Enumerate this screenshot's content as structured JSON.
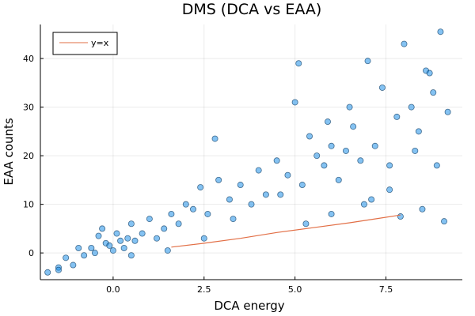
{
  "chart_data": {
    "type": "scatter",
    "title": "DMS (DCA vs EAA)",
    "xlabel": "DCA energy",
    "ylabel": "EAA counts",
    "xlim": [
      -2.0,
      9.6
    ],
    "ylim": [
      -5.5,
      47.0
    ],
    "xticks": [
      0.0,
      2.5,
      5.0,
      7.5
    ],
    "xtick_labels": [
      "0.0",
      "2.5",
      "5.0",
      "7.5"
    ],
    "yticks": [
      0,
      10,
      20,
      30,
      40
    ],
    "ytick_labels": [
      "0",
      "10",
      "20",
      "30",
      "40"
    ],
    "grid": true,
    "legend": {
      "position": "top-left",
      "entries": [
        "y=x"
      ]
    },
    "colors": {
      "points": "#1f8fe8",
      "point_edge": "#0b3b63",
      "line": "#e26f46"
    },
    "series": [
      {
        "name": "y=x",
        "kind": "line",
        "x": [
          1.6,
          2.5,
          3.5,
          4.5,
          5.5,
          6.5,
          7.2,
          7.9
        ],
        "y": [
          1.2,
          2.0,
          3.0,
          4.2,
          5.2,
          6.2,
          7.0,
          7.8
        ]
      },
      {
        "kind": "scatter",
        "x": [
          -1.8,
          -1.5,
          -1.3,
          -1.1,
          -0.95,
          -0.8,
          -0.6,
          -0.5,
          -0.4,
          -0.3,
          -0.2,
          -0.1,
          0.0,
          0.1,
          0.2,
          0.3,
          0.4,
          0.5,
          0.6,
          0.8,
          1.0,
          1.2,
          1.4,
          1.6,
          1.8,
          2.0,
          2.2,
          2.4,
          2.6,
          2.9,
          3.2,
          3.5,
          3.8,
          4.0,
          4.2,
          4.5,
          4.8,
          5.0,
          5.2,
          5.4,
          5.6,
          5.8,
          6.0,
          6.2,
          6.4,
          6.6,
          6.8,
          7.0,
          7.2,
          7.4,
          7.6,
          7.8,
          8.0,
          8.2,
          8.4,
          8.6,
          8.8,
          9.0,
          9.2,
          -1.5,
          0.5,
          1.5,
          2.8,
          3.3,
          4.6,
          5.1,
          5.3,
          5.9,
          6.5,
          6.9,
          7.1,
          7.6,
          7.9,
          8.3,
          8.5,
          8.7,
          8.9,
          9.1,
          2.5,
          6.0
        ],
        "y": [
          -4.0,
          -3.0,
          -1.0,
          -2.5,
          1.0,
          -0.5,
          1.0,
          0.0,
          3.5,
          5.0,
          2.0,
          1.5,
          0.5,
          4.0,
          2.5,
          1.0,
          3.0,
          6.0,
          2.5,
          4.0,
          7.0,
          3.0,
          5.0,
          8.0,
          6.0,
          10.0,
          9.0,
          13.5,
          8.0,
          15.0,
          11.0,
          14.0,
          10.0,
          17.0,
          12.0,
          19.0,
          16.0,
          31.0,
          14.0,
          24.0,
          20.0,
          18.0,
          22.0,
          15.0,
          21.0,
          26.0,
          19.0,
          39.5,
          22.0,
          34.0,
          18.0,
          28.0,
          43.0,
          30.0,
          25.0,
          37.5,
          33.0,
          45.5,
          29.0,
          -3.5,
          -0.5,
          0.5,
          23.5,
          7.0,
          12.0,
          39.0,
          6.0,
          27.0,
          30.0,
          10.0,
          11.0,
          13.0,
          7.5,
          21.0,
          9.0,
          37.0,
          18.0,
          6.5,
          3.0,
          8.0
        ]
      }
    ]
  }
}
